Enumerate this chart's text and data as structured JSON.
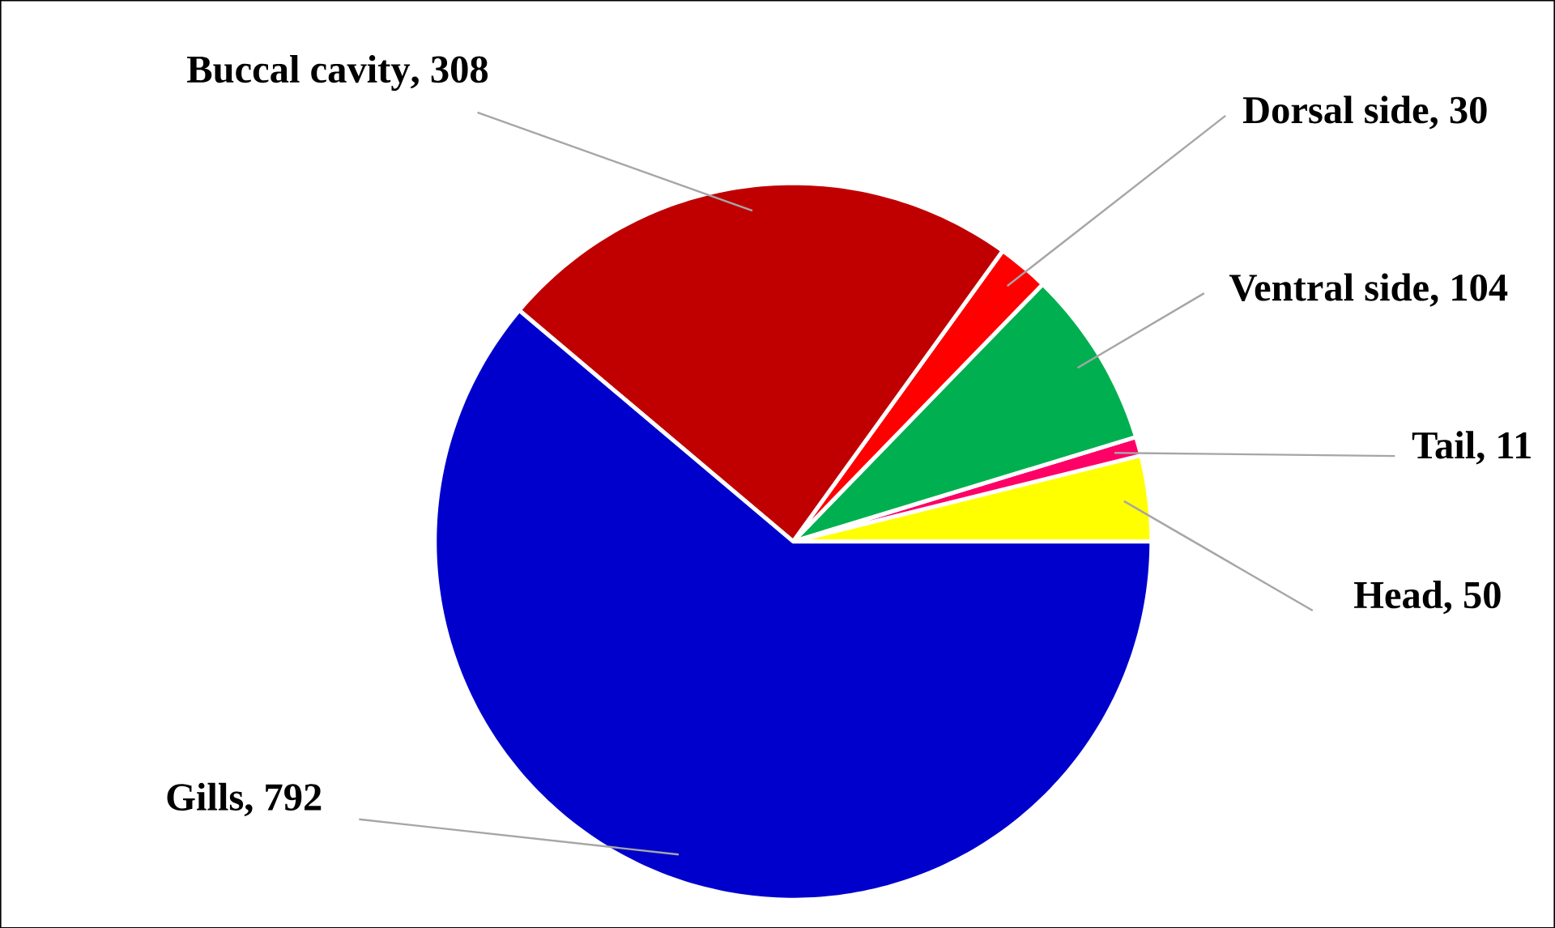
{
  "chart_data": {
    "type": "pie",
    "categories": [
      "Head",
      "Tail",
      "Ventral side",
      "Dorsal side",
      "Buccal cavity",
      "Gills"
    ],
    "values": [
      50,
      11,
      104,
      30,
      308,
      792
    ],
    "colors": [
      "#ffff00",
      "#ff0066",
      "#00b050",
      "#ff0000",
      "#c00000",
      "#0000cc"
    ],
    "value_labels": [
      ", 50",
      ", 11",
      ", 104",
      ", 30",
      ", 308",
      ", 792"
    ]
  }
}
